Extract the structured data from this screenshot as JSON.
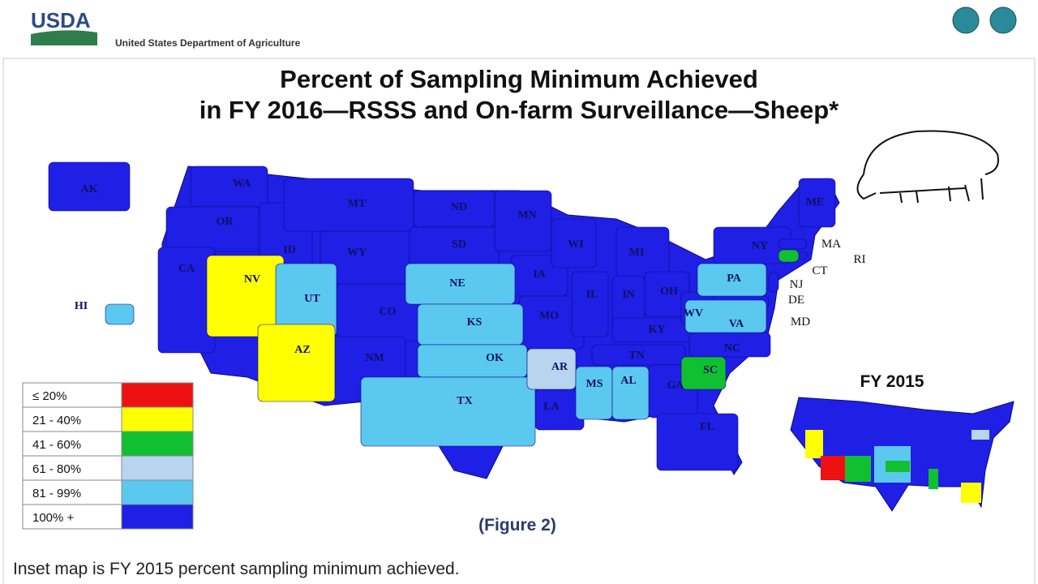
{
  "header": {
    "logo": "USDA",
    "department": "United States Department of Agriculture"
  },
  "title": [
    "Percent of Sampling Minimum Achieved",
    "in FY 2016—RSSS and On-farm Surveillance—Sheep*"
  ],
  "legend": [
    {
      "label": "≤ 20%",
      "color": "#ee1111"
    },
    {
      "label": "21 - 40%",
      "color": "#ffff00"
    },
    {
      "label": "41 - 60%",
      "color": "#10c030"
    },
    {
      "label": "61 - 80%",
      "color": "#b8d4ee"
    },
    {
      "label": "81 - 99%",
      "color": "#5bc8f0"
    },
    {
      "label": "100% +",
      "color": "#1f1fe6"
    }
  ],
  "states": [
    {
      "label": "AK",
      "category": 5
    },
    {
      "label": "WA",
      "category": 5
    },
    {
      "label": "OR",
      "category": 5
    },
    {
      "label": "CA",
      "category": 5
    },
    {
      "label": "NV",
      "category": 1
    },
    {
      "label": "ID",
      "category": 5
    },
    {
      "label": "MT",
      "category": 5
    },
    {
      "label": "WY",
      "category": 5
    },
    {
      "label": "UT",
      "category": 4
    },
    {
      "label": "AZ",
      "category": 1
    },
    {
      "label": "CO",
      "category": 5
    },
    {
      "label": "NM",
      "category": 5
    },
    {
      "label": "ND",
      "category": 5
    },
    {
      "label": "SD",
      "category": 5
    },
    {
      "label": "NE",
      "category": 4
    },
    {
      "label": "KS",
      "category": 4
    },
    {
      "label": "OK",
      "category": 4
    },
    {
      "label": "TX",
      "category": 4
    },
    {
      "label": "MN",
      "category": 5
    },
    {
      "label": "IA",
      "category": 5
    },
    {
      "label": "MO",
      "category": 5
    },
    {
      "label": "AR",
      "category": 3
    },
    {
      "label": "LA",
      "category": 5
    },
    {
      "label": "WI",
      "category": 5
    },
    {
      "label": "MI",
      "category": 5
    },
    {
      "label": "IL",
      "category": 5
    },
    {
      "label": "IN",
      "category": 5
    },
    {
      "label": "OH",
      "category": 5
    },
    {
      "label": "KY",
      "category": 5
    },
    {
      "label": "TN",
      "category": 5
    },
    {
      "label": "MS",
      "category": 4
    },
    {
      "label": "AL",
      "category": 4
    },
    {
      "label": "GA",
      "category": 5
    },
    {
      "label": "FL",
      "category": 5
    },
    {
      "label": "SC",
      "category": 2
    },
    {
      "label": "NC",
      "category": 5
    },
    {
      "label": "VA",
      "category": 4
    },
    {
      "label": "WV",
      "category": 5
    },
    {
      "label": "PA",
      "category": 4
    },
    {
      "label": "NY",
      "category": 5
    },
    {
      "label": "ME",
      "category": 5
    },
    {
      "label": "MA",
      "category": 5
    },
    {
      "label": "CT",
      "category": 2
    },
    {
      "label": "RI",
      "category": 5
    },
    {
      "label": "NJ",
      "category": 5
    },
    {
      "label": "DE",
      "category": 5
    },
    {
      "label": "MD",
      "category": 5
    },
    {
      "label": "HI",
      "category": 4
    }
  ],
  "inset_title": "FY 2015",
  "figure_caption": "(Figure 2)",
  "footnote": "Inset map is FY 2015 percent sampling minimum achieved."
}
